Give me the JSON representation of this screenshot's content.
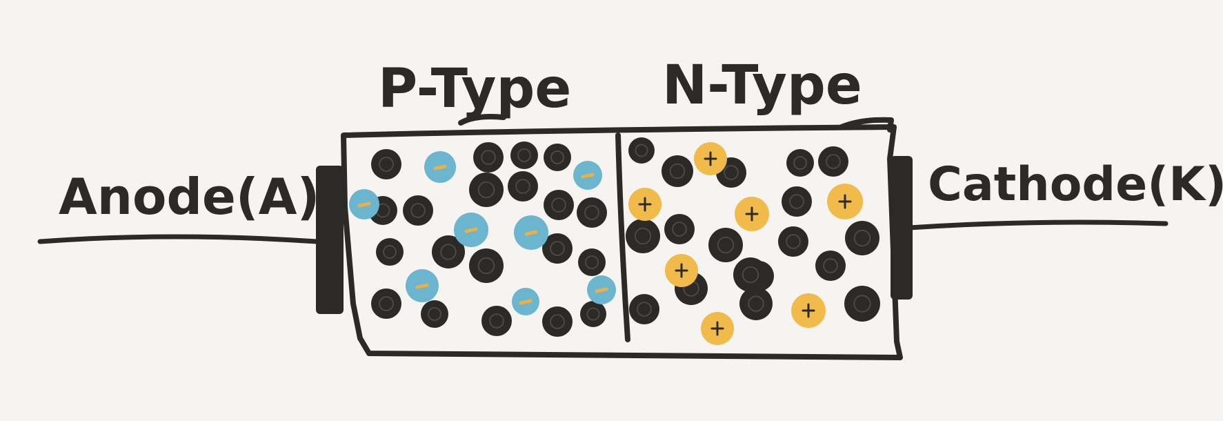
{
  "labels": {
    "p_type": "P-Type",
    "n_type": "N-Type",
    "anode": "Anode(A)",
    "cathode": "Cathode(K)"
  },
  "colors": {
    "background": "#f5f4f0",
    "ink": "#2b2a26",
    "hole_carrier": "#6bb5cf",
    "electron_carrier": "#f1bb4b",
    "minus_mark": "#e8b04a"
  },
  "symbols": {
    "minus": "-",
    "plus": "+"
  }
}
